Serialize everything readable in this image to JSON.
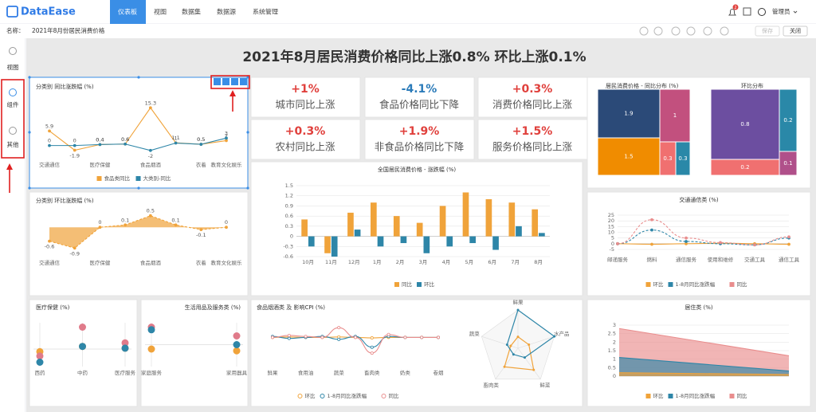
{
  "app": {
    "logo": "DataEase",
    "tabs": [
      "仪表板",
      "视图",
      "数据集",
      "数据源",
      "系统管理"
    ],
    "badge": "2",
    "user": "管理员"
  },
  "toolbar": {
    "name_label": "名称：",
    "name": "2021年8月份居民消费价格",
    "save": "保存",
    "close": "关闭"
  },
  "sidebar": [
    "视图",
    "组件",
    "其他"
  ],
  "dashboard": {
    "title": "2021年8月居民消费价格同比上涨0.8% 环比上涨0.1%"
  },
  "kpis": [
    {
      "value": "+1%",
      "label": "城市同比上涨",
      "color": "#e0403c"
    },
    {
      "value": "-4.1%",
      "label": "食品价格同比下降",
      "color": "#2b7bb9"
    },
    {
      "value": "+0.3%",
      "label": "消费价格同比上涨",
      "color": "#e0403c"
    },
    {
      "value": "+0.3%",
      "label": "农村同比上涨",
      "color": "#e0403c"
    },
    {
      "value": "+1.9%",
      "label": "非食品价格同比下降",
      "color": "#e0403c"
    },
    {
      "value": "+1.5%",
      "label": "服务价格同比上涨",
      "color": "#e0403c"
    }
  ],
  "chart_data": [
    {
      "type": "line",
      "title": "分类别 同比涨跌幅 (%)",
      "data_labels": true,
      "categories": [
        "交通通信",
        null,
        "医疗保健",
        null,
        "食品烟酒",
        null,
        "衣着",
        "教育文化娱乐"
      ],
      "ylim": [
        -4,
        17
      ],
      "series": [
        {
          "name": "食品类同比",
          "color": "#f0a33a",
          "values": [
            5.9,
            -1.9,
            0.4,
            0.6,
            15.3,
            1.1,
            0.5,
            2
          ]
        },
        {
          "name": "大类别-同比",
          "color": "#2e86a8",
          "values": [
            0,
            0,
            0.4,
            0.6,
            -2,
            1,
            0.5,
            3
          ]
        }
      ]
    },
    {
      "type": "area",
      "title": "分类别 环比涨跌幅 (%)",
      "data_labels": true,
      "dashed": true,
      "categories": [
        "交通通信",
        null,
        "医疗保健",
        null,
        "食品烟酒",
        null,
        "衣着",
        "教育文化娱乐"
      ],
      "ylim": [
        -1.2,
        0.8
      ],
      "color": "#f0a33a",
      "values": [
        -0.6,
        -0.9,
        0,
        0.1,
        0.5,
        0.1,
        -0.1,
        0
      ]
    },
    {
      "type": "bar",
      "title": "全国居民消费价格 - 涨跌幅 (%)",
      "grid": true,
      "categories": [
        "10月",
        "11月",
        "12月",
        "1月",
        "2月",
        "3月",
        "4月",
        "5月",
        "6月",
        "7月",
        "8月"
      ],
      "ylim": [
        -0.6,
        1.5
      ],
      "yticks": [
        -0.6,
        -0.3,
        0,
        0.3,
        0.6,
        0.9,
        1.2,
        1.5
      ],
      "series": [
        {
          "name": "同比",
          "color": "#f0a33a",
          "values": [
            0.5,
            -0.5,
            0.7,
            1.0,
            0.6,
            0.4,
            0.9,
            1.3,
            1.1,
            1.0,
            0.8
          ]
        },
        {
          "name": "环比",
          "color": "#2e86a8",
          "values": [
            -0.3,
            -0.6,
            0.2,
            -0.3,
            -0.2,
            -0.5,
            -0.3,
            -0.2,
            -0.4,
            0.3,
            0.1
          ]
        }
      ]
    },
    {
      "type": "treemap",
      "title": "居民消费价格 - 同比分布 (%)",
      "values": [
        1.9,
        1,
        1.5,
        0.3,
        0.3
      ],
      "colors": [
        "#2b4a78",
        "#c2507e",
        "#f08c00",
        "#f07070",
        "#2a88a8"
      ]
    },
    {
      "type": "treemap",
      "title": "环比分布",
      "values": [
        0.8,
        0.2,
        0.2,
        0.1
      ],
      "colors": [
        "#6c4ea0",
        "#2a88a8",
        "#f07070",
        "#b0508a"
      ]
    },
    {
      "type": "line",
      "title": "交通通信类 (%)",
      "grid": true,
      "smooth": true,
      "categories": [
        "邮递服务",
        "燃料",
        "通信服务",
        "使用和维修",
        "交通工具",
        "通信工具"
      ],
      "ylim": [
        -5,
        25
      ],
      "yticks": [
        -5,
        0,
        5,
        10,
        15,
        20,
        25
      ],
      "series": [
        {
          "name": "环比",
          "color": "#f0a33a",
          "values": [
            0,
            -0.5,
            0,
            0.5,
            0,
            -0.5
          ]
        },
        {
          "name": "1-8月同比涨跌幅",
          "color": "#2e86a8",
          "dashed": true,
          "values": [
            0,
            12,
            2,
            0,
            -1,
            5
          ]
        },
        {
          "name": "同比",
          "color": "#e98d8d",
          "dashed": true,
          "values": [
            0,
            21,
            5,
            1,
            -1,
            6
          ]
        }
      ]
    },
    {
      "type": "dot",
      "title": "医疗保健 (%)",
      "categories": [
        "西药",
        "中药",
        "医疗服务"
      ],
      "ylim": [
        -1.5,
        3.5
      ],
      "series": [
        {
          "color": "#f0a33a",
          "values": [
            0.2,
            0.8,
            0.6
          ]
        },
        {
          "color": "#e07b8a",
          "values": [
            -0.3,
            3,
            1.2
          ]
        },
        {
          "color": "#2e86a8",
          "values": [
            -1,
            0.8,
            0.6
          ]
        }
      ]
    },
    {
      "type": "dot",
      "title": "生活用品及服务类 (%)",
      "categories": [
        "家庭服务",
        "家用器具"
      ],
      "ylim": [
        -2,
        3
      ],
      "series": [
        {
          "color": "#f0a33a",
          "values": [
            0,
            -0.2
          ]
        },
        {
          "color": "#e07b8a",
          "values": [
            2.5,
            1.5
          ]
        },
        {
          "color": "#2e86a8",
          "values": [
            2.2,
            0.5
          ]
        }
      ]
    },
    {
      "type": "line",
      "title": "食品烟酒类 及 影响CPI (%)",
      "smooth": true,
      "hollow": true,
      "categories": [
        "鲜果",
        null,
        "食用油",
        null,
        "蔬菜",
        null,
        "畜肉类",
        null,
        "奶类",
        null,
        "卷烟"
      ],
      "ylim": [
        -20,
        15
      ],
      "series": [
        {
          "name": "环比",
          "color": "#f0a33a",
          "values": [
            0,
            0.5,
            0,
            0,
            0.5,
            0,
            -0.5,
            0,
            0,
            0,
            0
          ]
        },
        {
          "name": "1-8月同比涨跌幅",
          "color": "#2e86a8",
          "values": [
            1,
            -1,
            0,
            1,
            -2,
            1,
            -10,
            1,
            0,
            0,
            0
          ]
        },
        {
          "name": "同比",
          "color": "#e98d8d",
          "values": [
            0,
            2,
            1,
            0,
            10,
            0,
            -16,
            3,
            0,
            0,
            0
          ]
        }
      ]
    },
    {
      "type": "radar",
      "categories": [
        "鲜果",
        "水产品",
        "鲜菜",
        "畜肉类",
        "蔬菜"
      ],
      "rlim": [
        0,
        10
      ],
      "series": [
        {
          "color": "#f0a33a",
          "values": [
            3,
            3,
            7,
            6,
            2
          ]
        },
        {
          "color": "#2e86a8",
          "values": [
            10,
            10,
            3,
            2,
            3
          ]
        }
      ]
    },
    {
      "type": "area",
      "title": "居住类 (%)",
      "grid": true,
      "stacked_back": true,
      "categories": [
        null,
        null
      ],
      "ylim": [
        0,
        3
      ],
      "yticks": [
        0,
        0.5,
        1,
        1.5,
        2,
        2.5,
        3
      ],
      "series": [
        {
          "name": "环比",
          "color": "#f0a33a",
          "values": [
            0.2,
            0.1
          ]
        },
        {
          "name": "1-8月同比涨跌幅",
          "color": "#2e86a8",
          "values": [
            1.1,
            0.3
          ]
        },
        {
          "name": "同比",
          "color": "#e98d8d",
          "values": [
            2.8,
            1.2
          ]
        }
      ]
    }
  ]
}
